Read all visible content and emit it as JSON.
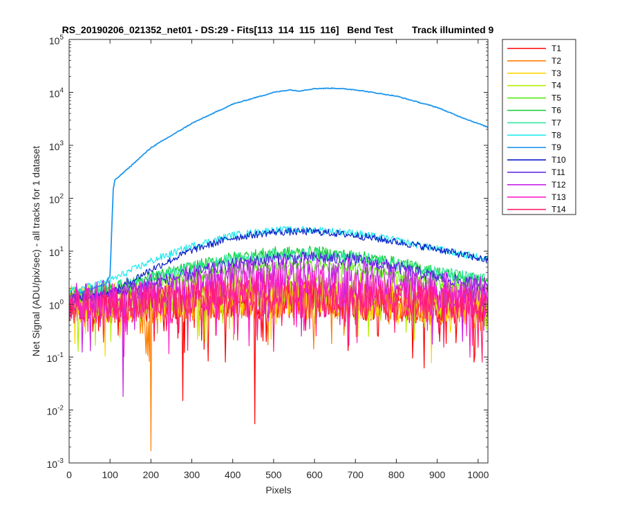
{
  "chart_data": {
    "type": "line",
    "title": "RS_20190206_021352_net01 - DS:29 - Fits[113  114  115  116]   Bend Test       Track illuminted 9",
    "xlabel": "Pixels",
    "ylabel": "Net Signal (ADU/pix/sec) - all tracks for 1 dataset",
    "xlim": [
      0,
      1024
    ],
    "ylim": [
      0.001,
      100000
    ],
    "yscale": "log",
    "grid": false,
    "legend_position": "outside-top-right",
    "x_ticks": [
      "0",
      "100",
      "200",
      "300",
      "400",
      "500",
      "600",
      "700",
      "800",
      "900",
      "1000"
    ],
    "y_ticks": [
      {
        "base": "10",
        "exp": "-3"
      },
      {
        "base": "10",
        "exp": "-2"
      },
      {
        "base": "10",
        "exp": "-1"
      },
      {
        "base": "10",
        "exp": "0"
      },
      {
        "base": "10",
        "exp": "1"
      },
      {
        "base": "10",
        "exp": "2"
      },
      {
        "base": "10",
        "exp": "3"
      },
      {
        "base": "10",
        "exp": "4"
      },
      {
        "base": "10",
        "exp": "5"
      }
    ],
    "series": [
      {
        "name": "T1",
        "color": "#ff0000",
        "values": [
          [
            0,
            0.9
          ],
          [
            100,
            1.0
          ],
          [
            200,
            1.0
          ],
          [
            300,
            1.1
          ],
          [
            400,
            1.1
          ],
          [
            500,
            1.2
          ],
          [
            600,
            1.2
          ],
          [
            700,
            1.1
          ],
          [
            800,
            1.0
          ],
          [
            900,
            0.9
          ],
          [
            1024,
            0.9
          ]
        ]
      },
      {
        "name": "T2",
        "color": "#ff7f00",
        "values": [
          [
            0,
            0.9
          ],
          [
            100,
            1.0
          ],
          [
            200,
            1.0
          ],
          [
            300,
            1.1
          ],
          [
            400,
            1.2
          ],
          [
            500,
            1.2
          ],
          [
            600,
            1.2
          ],
          [
            700,
            1.1
          ],
          [
            800,
            1.0
          ],
          [
            900,
            0.9
          ],
          [
            1024,
            0.9
          ]
        ]
      },
      {
        "name": "T3",
        "color": "#ffd700",
        "values": [
          [
            0,
            1.0
          ],
          [
            100,
            1.0
          ],
          [
            200,
            1.1
          ],
          [
            300,
            1.2
          ],
          [
            400,
            1.3
          ],
          [
            500,
            1.3
          ],
          [
            600,
            1.3
          ],
          [
            700,
            1.2
          ],
          [
            800,
            1.1
          ],
          [
            900,
            1.0
          ],
          [
            1024,
            1.0
          ]
        ]
      },
      {
        "name": "T4",
        "color": "#b2ee00",
        "values": [
          [
            0,
            1.1
          ],
          [
            100,
            1.2
          ],
          [
            200,
            1.4
          ],
          [
            300,
            1.7
          ],
          [
            400,
            2.0
          ],
          [
            500,
            2.2
          ],
          [
            600,
            2.2
          ],
          [
            700,
            2.0
          ],
          [
            800,
            1.7
          ],
          [
            900,
            1.4
          ],
          [
            1024,
            1.2
          ]
        ]
      },
      {
        "name": "T5",
        "color": "#55ee10",
        "values": [
          [
            0,
            1.3
          ],
          [
            100,
            1.6
          ],
          [
            200,
            2.3
          ],
          [
            300,
            3.3
          ],
          [
            400,
            4.5
          ],
          [
            500,
            5.3
          ],
          [
            600,
            5.3
          ],
          [
            700,
            4.6
          ],
          [
            800,
            3.5
          ],
          [
            900,
            2.5
          ],
          [
            1024,
            1.8
          ]
        ]
      },
      {
        "name": "T6",
        "color": "#10cc30",
        "values": [
          [
            0,
            1.4
          ],
          [
            100,
            1.9
          ],
          [
            200,
            3.2
          ],
          [
            300,
            5.0
          ],
          [
            400,
            7.5
          ],
          [
            500,
            9.2
          ],
          [
            600,
            9.5
          ],
          [
            700,
            8.0
          ],
          [
            800,
            6.0
          ],
          [
            900,
            4.0
          ],
          [
            1024,
            2.6
          ]
        ]
      },
      {
        "name": "T7",
        "color": "#30e8a0",
        "values": [
          [
            0,
            1.5
          ],
          [
            100,
            2.0
          ],
          [
            200,
            3.0
          ],
          [
            300,
            4.8
          ],
          [
            400,
            7.0
          ],
          [
            500,
            8.5
          ],
          [
            600,
            8.7
          ],
          [
            700,
            7.6
          ],
          [
            800,
            5.8
          ],
          [
            900,
            4.0
          ],
          [
            1024,
            2.8
          ]
        ]
      },
      {
        "name": "T8",
        "color": "#20e8ee",
        "values": [
          [
            0,
            1.7
          ],
          [
            100,
            2.8
          ],
          [
            200,
            6.5
          ],
          [
            300,
            12.5
          ],
          [
            400,
            20
          ],
          [
            500,
            25
          ],
          [
            600,
            25.5
          ],
          [
            700,
            22
          ],
          [
            800,
            16
          ],
          [
            900,
            11
          ],
          [
            1024,
            7.0
          ]
        ]
      },
      {
        "name": "T9",
        "color": "#1e96ee",
        "values": [
          [
            0,
            1.4
          ],
          [
            90,
            2.4
          ],
          [
            100,
            3.5
          ],
          [
            108,
            150
          ],
          [
            112,
            220
          ],
          [
            150,
            400
          ],
          [
            200,
            900
          ],
          [
            300,
            2600
          ],
          [
            400,
            6000
          ],
          [
            500,
            10000
          ],
          [
            540,
            11200
          ],
          [
            560,
            10600
          ],
          [
            600,
            11800
          ],
          [
            650,
            12000
          ],
          [
            700,
            11200
          ],
          [
            800,
            8500
          ],
          [
            900,
            5200
          ],
          [
            950,
            3600
          ],
          [
            1024,
            2200
          ]
        ]
      },
      {
        "name": "T10",
        "color": "#0a1ec8",
        "values": [
          [
            0,
            1.2
          ],
          [
            100,
            1.6
          ],
          [
            200,
            4.5
          ],
          [
            300,
            10.5
          ],
          [
            400,
            18
          ],
          [
            500,
            23
          ],
          [
            600,
            23.5
          ],
          [
            700,
            20
          ],
          [
            800,
            15
          ],
          [
            900,
            11
          ],
          [
            1024,
            6.7
          ]
        ]
      },
      {
        "name": "T11",
        "color": "#5a1ee6",
        "values": [
          [
            0,
            1.2
          ],
          [
            100,
            1.5
          ],
          [
            200,
            2.4
          ],
          [
            300,
            3.8
          ],
          [
            400,
            5.6
          ],
          [
            500,
            7.2
          ],
          [
            600,
            7.5
          ],
          [
            700,
            6.8
          ],
          [
            800,
            5.0
          ],
          [
            900,
            3.2
          ],
          [
            1024,
            2.2
          ]
        ]
      },
      {
        "name": "T12",
        "color": "#c81ee6",
        "values": [
          [
            0,
            1.1
          ],
          [
            100,
            1.3
          ],
          [
            200,
            1.7
          ],
          [
            300,
            2.4
          ],
          [
            400,
            3.0
          ],
          [
            500,
            3.5
          ],
          [
            600,
            3.6
          ],
          [
            700,
            3.2
          ],
          [
            800,
            2.6
          ],
          [
            900,
            1.9
          ],
          [
            1024,
            1.5
          ]
        ]
      },
      {
        "name": "T13",
        "color": "#ff1ec8",
        "values": [
          [
            0,
            1.0
          ],
          [
            100,
            1.1
          ],
          [
            200,
            1.3
          ],
          [
            300,
            1.6
          ],
          [
            400,
            1.9
          ],
          [
            500,
            2.1
          ],
          [
            600,
            2.1
          ],
          [
            700,
            1.9
          ],
          [
            800,
            1.6
          ],
          [
            900,
            1.3
          ],
          [
            1024,
            1.1
          ]
        ]
      },
      {
        "name": "T14",
        "color": "#ff1e6e",
        "values": [
          [
            0,
            0.9
          ],
          [
            100,
            1.0
          ],
          [
            200,
            1.0
          ],
          [
            300,
            1.2
          ],
          [
            400,
            1.3
          ],
          [
            500,
            1.3
          ],
          [
            600,
            1.3
          ],
          [
            700,
            1.2
          ],
          [
            800,
            1.1
          ],
          [
            900,
            1.0
          ],
          [
            1024,
            0.9
          ]
        ]
      }
    ],
    "annotations": {
      "dips": [
        {
          "series": "T2",
          "x": 200,
          "y": 0.0017
        },
        {
          "series": "T1",
          "x": 278,
          "y": 0.015
        },
        {
          "series": "T1",
          "x": 454,
          "y": 0.0055
        },
        {
          "series": "T1",
          "x": 719,
          "y": 0.013
        },
        {
          "series": "T12",
          "x": 132,
          "y": 0.018
        }
      ]
    }
  }
}
